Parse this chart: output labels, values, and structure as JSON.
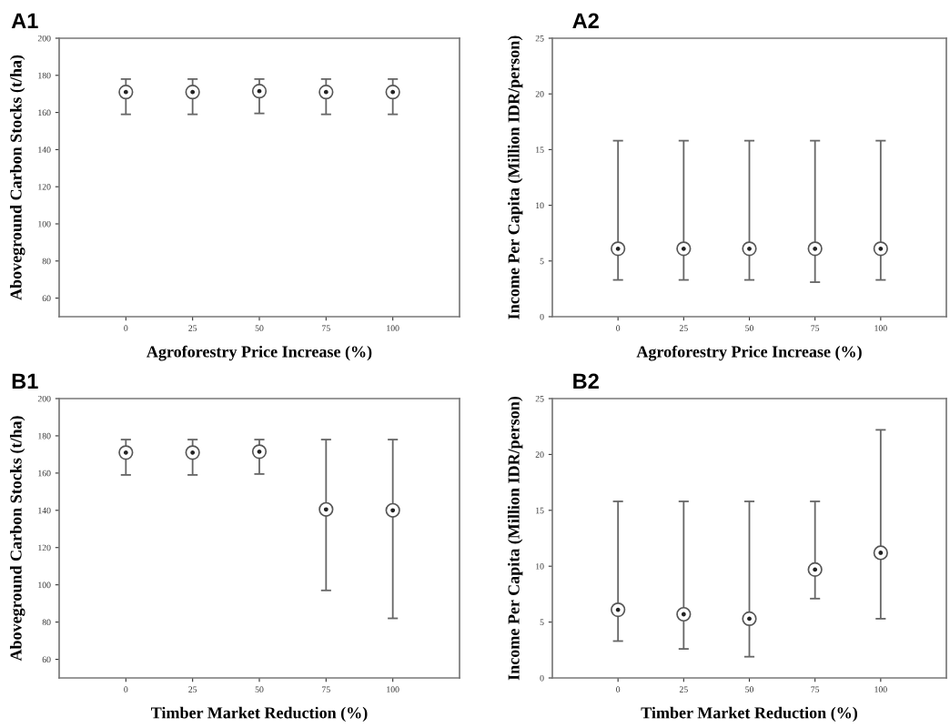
{
  "chart_data": [
    {
      "type": "scatter",
      "title": "A1",
      "xlabel": "Agroforestry Price Increase (%)",
      "ylabel": "Aboveground Carbon Stocks (t/ha)",
      "x": [
        0,
        25,
        50,
        75,
        100
      ],
      "xlim": [
        -25,
        125
      ],
      "xticks": [
        0,
        25,
        50,
        75,
        100
      ],
      "ylim": [
        50,
        200
      ],
      "yticks": [
        60,
        80,
        100,
        120,
        140,
        160,
        180,
        200
      ],
      "marker": "circle",
      "color": "#222222",
      "grid": false,
      "legend": false,
      "values": [
        171,
        171,
        171.5,
        171,
        171
      ],
      "errors": [
        [
          159,
          178
        ],
        [
          159,
          178
        ],
        [
          159.5,
          178
        ],
        [
          159,
          178
        ],
        [
          159,
          178
        ]
      ]
    },
    {
      "type": "scatter",
      "title": "A2",
      "xlabel": "Agroforestry Price Increase (%)",
      "ylabel": "Income Per Capita (Million IDR/person)",
      "x": [
        0,
        25,
        50,
        75,
        100
      ],
      "xlim": [
        -25,
        125
      ],
      "xticks": [
        0,
        25,
        50,
        75,
        100
      ],
      "ylim": [
        0,
        25
      ],
      "yticks": [
        0,
        5,
        10,
        15,
        20,
        25
      ],
      "marker": "circle",
      "color": "#222222",
      "grid": false,
      "legend": false,
      "values": [
        6.1,
        6.1,
        6.1,
        6.1,
        6.1
      ],
      "errors": [
        [
          3.3,
          15.8
        ],
        [
          3.3,
          15.8
        ],
        [
          3.3,
          15.8
        ],
        [
          3.1,
          15.8
        ],
        [
          3.3,
          15.8
        ]
      ]
    },
    {
      "type": "scatter",
      "title": "B1",
      "xlabel": "Timber Market Reduction (%)",
      "ylabel": "Aboveground Carbon Stocks (t/ha)",
      "x": [
        0,
        25,
        50,
        75,
        100
      ],
      "xlim": [
        -25,
        125
      ],
      "xticks": [
        0,
        25,
        50,
        75,
        100
      ],
      "ylim": [
        50,
        200
      ],
      "yticks": [
        60,
        80,
        100,
        120,
        140,
        160,
        180,
        200
      ],
      "marker": "circle",
      "color": "#222222",
      "grid": false,
      "legend": false,
      "values": [
        171,
        171,
        171.5,
        140.5,
        140
      ],
      "errors": [
        [
          159,
          178
        ],
        [
          159,
          178
        ],
        [
          159.5,
          178
        ],
        [
          97,
          178
        ],
        [
          82,
          178
        ]
      ]
    },
    {
      "type": "scatter",
      "title": "B2",
      "xlabel": "Timber Market Reduction (%)",
      "ylabel": "Income Per Capita (Million IDR/person)",
      "x": [
        0,
        25,
        50,
        75,
        100
      ],
      "xlim": [
        -25,
        125
      ],
      "xticks": [
        0,
        25,
        50,
        75,
        100
      ],
      "ylim": [
        0,
        25
      ],
      "yticks": [
        0,
        5,
        10,
        15,
        20,
        25
      ],
      "marker": "circle",
      "color": "#222222",
      "grid": false,
      "legend": false,
      "values": [
        6.1,
        5.7,
        5.3,
        9.7,
        11.2
      ],
      "errors": [
        [
          3.3,
          15.8
        ],
        [
          2.6,
          15.8
        ],
        [
          1.9,
          15.8
        ],
        [
          7.1,
          15.8
        ],
        [
          5.3,
          22.2
        ]
      ]
    }
  ]
}
